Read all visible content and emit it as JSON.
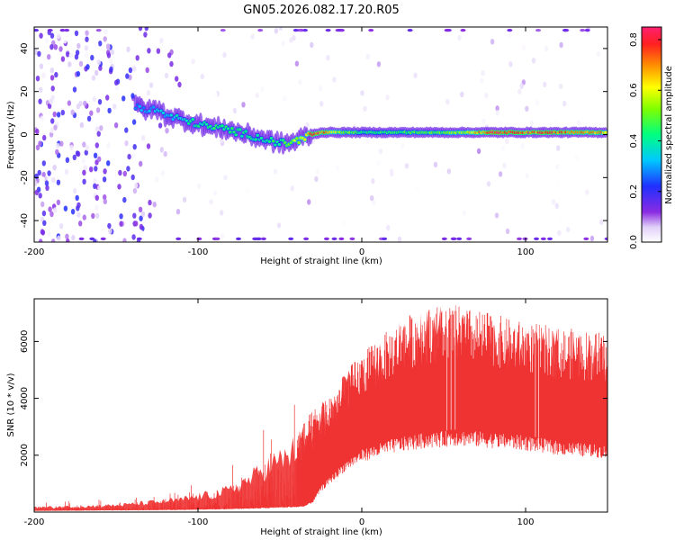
{
  "title": "GN05.2026.082.17.20.R05",
  "chart_data": [
    {
      "type": "heatmap",
      "title": "GN05.2026.082.17.20.R05",
      "xlabel": "Height of straight line (km)",
      "ylabel": "Frequency (Hz)",
      "xlim": [
        -200,
        150
      ],
      "ylim": [
        -50,
        50
      ],
      "xticks": [
        -200,
        -100,
        0,
        100
      ],
      "yticks": [
        -40,
        -20,
        0,
        20,
        40
      ],
      "colorbar": {
        "label": "Normalized spectral amplitude",
        "range": [
          0.0,
          0.85
        ],
        "ticks": [
          0.0,
          0.2,
          0.4,
          0.6,
          0.8
        ]
      },
      "trace": {
        "x": [
          -135,
          -130,
          -125,
          -120,
          -115,
          -110,
          -105,
          -100,
          -95,
          -90,
          -85,
          -80,
          -75,
          -70,
          -65,
          -60,
          -55,
          -50,
          -45,
          -40,
          -35,
          -30,
          -25,
          -20,
          -15,
          -10,
          -5,
          0,
          10,
          20,
          40,
          60,
          80,
          100,
          120,
          150
        ],
        "frequency": [
          13,
          11,
          12,
          9,
          8,
          7,
          6,
          5,
          4,
          3,
          3,
          2,
          1,
          0,
          -1,
          -2,
          -3,
          -4,
          -4,
          -3,
          -1,
          0,
          1,
          1,
          1,
          1,
          1,
          1,
          1,
          1,
          1,
          1,
          1,
          1,
          1,
          1
        ],
        "amplitude": [
          0.3,
          0.32,
          0.35,
          0.33,
          0.36,
          0.4,
          0.42,
          0.42,
          0.44,
          0.45,
          0.45,
          0.45,
          0.43,
          0.42,
          0.42,
          0.43,
          0.44,
          0.45,
          0.5,
          0.6,
          0.7,
          0.78,
          0.8,
          0.72,
          0.6,
          0.55,
          0.5,
          0.45,
          0.45,
          0.48,
          0.5,
          0.55,
          0.85,
          0.8,
          0.78,
          0.7
        ]
      },
      "noise_region_x": [
        -200,
        -110
      ]
    },
    {
      "type": "area",
      "xlabel": "Height of straight line (km)",
      "ylabel": "SNR (10 * v/v)",
      "xlim": [
        -200,
        150
      ],
      "ylim": [
        0,
        7500
      ],
      "xticks": [
        -200,
        -100,
        0,
        100
      ],
      "yticks": [
        2000,
        4000,
        6000
      ],
      "color": "#ef3333",
      "x": [
        -200,
        -175,
        -150,
        -125,
        -110,
        -100,
        -90,
        -80,
        -70,
        -60,
        -50,
        -40,
        -35,
        -30,
        -25,
        -20,
        -15,
        -10,
        -5,
        0,
        10,
        20,
        30,
        40,
        50,
        55,
        60,
        70,
        80,
        90,
        100,
        110,
        120,
        130,
        140,
        150
      ],
      "upper": [
        200,
        250,
        300,
        450,
        550,
        700,
        800,
        1000,
        1400,
        1900,
        2300,
        2800,
        3200,
        3600,
        3900,
        4200,
        4500,
        4900,
        5300,
        5600,
        6100,
        6600,
        7000,
        7200,
        7300,
        7300,
        7250,
        7100,
        7000,
        6800,
        6700,
        6600,
        6500,
        6450,
        6400,
        6300
      ],
      "lower": [
        50,
        60,
        70,
        80,
        90,
        100,
        110,
        120,
        140,
        160,
        180,
        200,
        230,
        400,
        900,
        1200,
        1500,
        1800,
        2000,
        2200,
        2400,
        2600,
        2700,
        2800,
        2850,
        2900,
        2900,
        2850,
        2800,
        2750,
        2700,
        2600,
        2500,
        2450,
        2400,
        2350
      ]
    }
  ]
}
